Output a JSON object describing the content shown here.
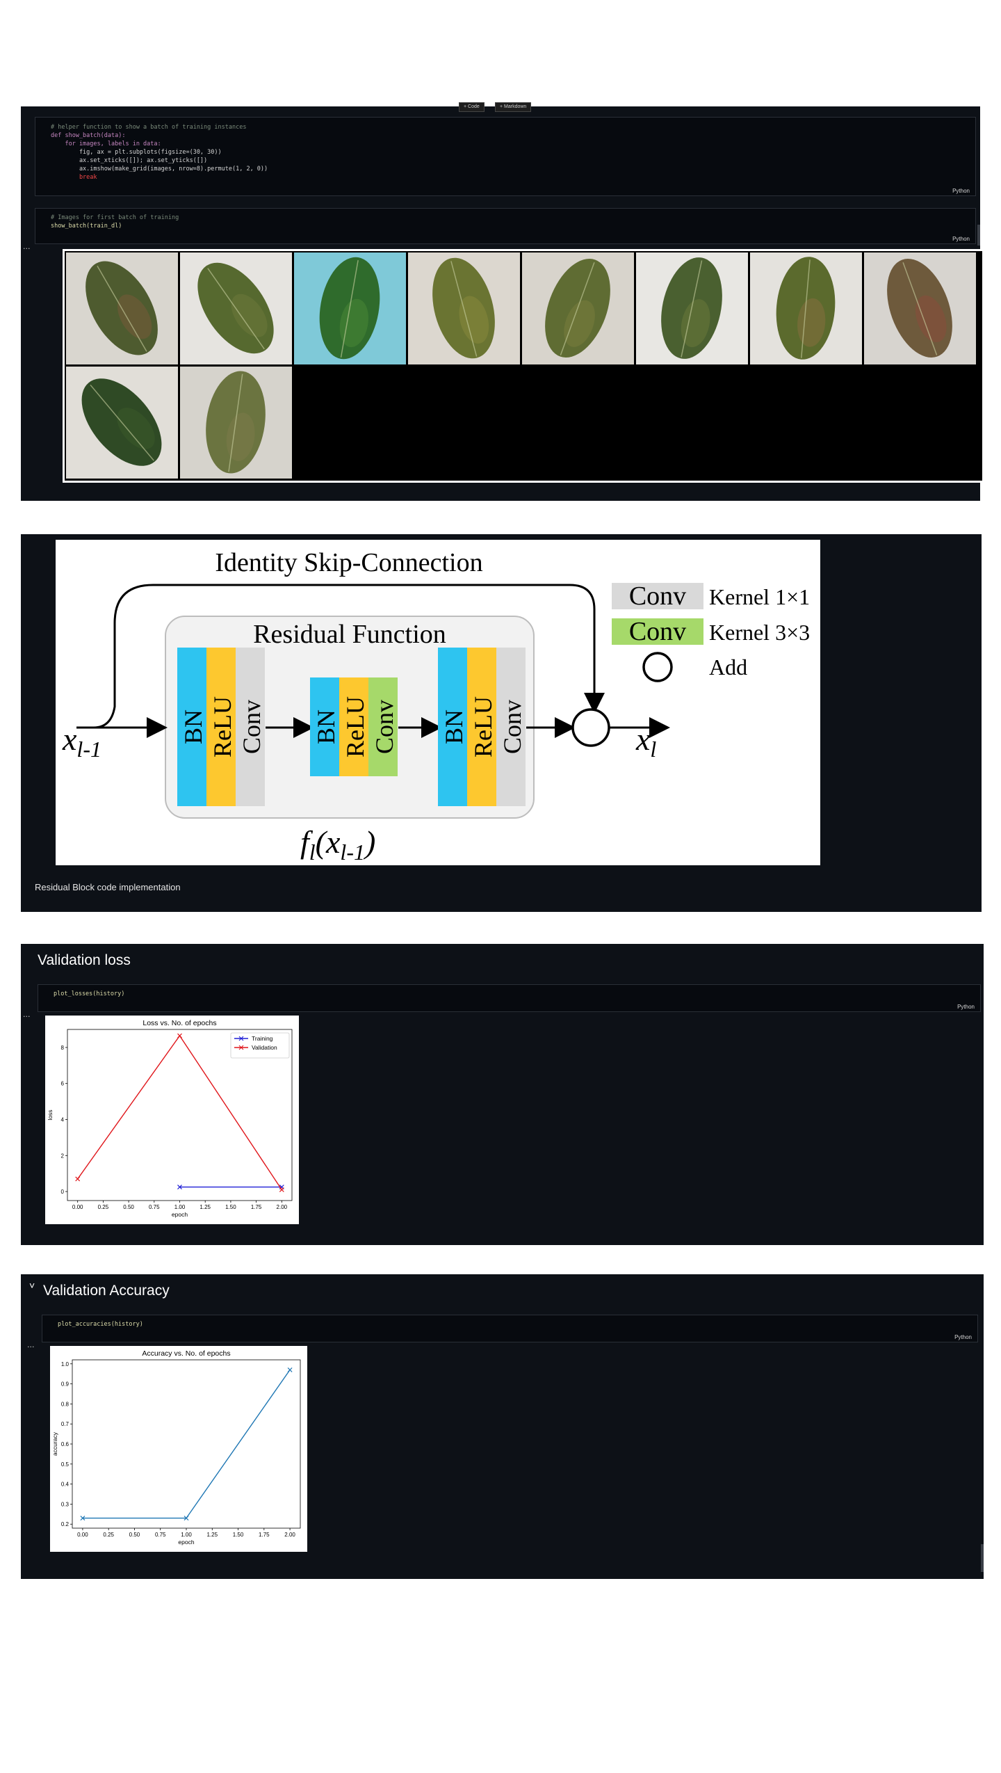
{
  "toolbar": {
    "code_label": "+ Code",
    "markdown_label": "+ Markdown"
  },
  "cells": {
    "show_batch_def": {
      "language": "Python",
      "lines": [
        "# helper function to show a batch of training instances",
        "def show_batch(data):",
        "    for images, labels in data:",
        "        fig, ax = plt.subplots(figsize=(30, 30))",
        "        ax.set_xticks([]); ax.set_yticks([])",
        "        ax.imshow(make_grid(images, nrow=8).permute(1, 2, 0))",
        "        break"
      ]
    },
    "show_batch_call": {
      "language": "Python",
      "lines": [
        "# Images for first batch of training",
        "show_batch(train_dl)"
      ]
    },
    "plot_losses": {
      "language": "Python",
      "code": "plot_losses(history)"
    },
    "plot_accuracies": {
      "language": "Python",
      "code": "plot_accuracies(history)"
    }
  },
  "output_ellipsis": "...",
  "leaf_images": [
    {
      "name": "leaf-1",
      "bg": "#d9d6cf",
      "leaf": "#4e5b2f",
      "tint": "#7a5a3a"
    },
    {
      "name": "leaf-2",
      "bg": "#e6e4e0",
      "leaf": "#56692f",
      "tint": "#6d7a3b"
    },
    {
      "name": "leaf-3",
      "bg": "#7fc9d8",
      "leaf": "#2f6b2c",
      "tint": "#4c8a35"
    },
    {
      "name": "leaf-4",
      "bg": "#dcd7cf",
      "leaf": "#6a7432",
      "tint": "#8a8a3c"
    },
    {
      "name": "leaf-5",
      "bg": "#d8d4cc",
      "leaf": "#5f6c33",
      "tint": "#7b7d3d"
    },
    {
      "name": "leaf-6",
      "bg": "#e8e7e3",
      "leaf": "#4a6030",
      "tint": "#6b7a3a"
    },
    {
      "name": "leaf-7",
      "bg": "#e4e2dd",
      "leaf": "#5b6a2d",
      "tint": "#8a6d3f"
    },
    {
      "name": "leaf-8",
      "bg": "#d7d4cf",
      "leaf": "#6e5a3c",
      "tint": "#8b4a3a"
    },
    {
      "name": "leaf-9",
      "bg": "#e1ded8",
      "leaf": "#2f4a25",
      "tint": "#3b5a2a"
    },
    {
      "name": "leaf-10",
      "bg": "#d6d3cc",
      "leaf": "#6b7440",
      "tint": "#7d7a4a"
    }
  ],
  "diagram": {
    "title": "Identity Skip-Connection",
    "residual_label": "Residual Function",
    "blocks": [
      "BN",
      "ReLU",
      "Conv"
    ],
    "input_label": "x",
    "input_sub": "l-1",
    "output_label": "x",
    "output_sub": "l",
    "function_label": "f",
    "function_sub": "l",
    "function_arg": "(x",
    "function_arg_sub": "l-1",
    "function_close": ")",
    "legend": [
      {
        "box": "Conv",
        "text": "Kernel 1×1",
        "color": "#d9d9d9"
      },
      {
        "box": "Conv",
        "text": "Kernel 3×3",
        "color": "#a6d96a"
      },
      {
        "box": "",
        "text": "Add",
        "color": "#ffffff"
      }
    ],
    "colors": {
      "bn": "#2ec4f0",
      "relu": "#fdc82f",
      "conv": "#d9d9d9",
      "conv3": "#a6d96a",
      "residual_bg": "#f2f2f2"
    },
    "caption": "Residual Block code implementation"
  },
  "headings": {
    "loss": "Validation loss",
    "accuracy": "Validation Accuracy",
    "collapse_glyph": "˅"
  },
  "chart_data": [
    {
      "type": "line",
      "title": "Loss vs. No. of epochs",
      "xlabel": "epoch",
      "ylabel": "loss",
      "xlim": [
        -0.1,
        2.1
      ],
      "ylim": [
        -0.5,
        9.0
      ],
      "xticks": [
        "0.00",
        "0.25",
        "0.50",
        "0.75",
        "1.00",
        "1.25",
        "1.50",
        "1.75",
        "2.00"
      ],
      "yticks": [
        "0",
        "2",
        "4",
        "6",
        "8"
      ],
      "legend_position": "top-right",
      "series": [
        {
          "name": "Training",
          "color": "#1f1fd6",
          "marker": "x",
          "x": [
            1,
            2
          ],
          "y": [
            0.25,
            0.25
          ]
        },
        {
          "name": "Validation",
          "color": "#e0161b",
          "marker": "x",
          "x": [
            0,
            1,
            2
          ],
          "y": [
            0.7,
            8.65,
            0.1
          ]
        }
      ]
    },
    {
      "type": "line",
      "title": "Accuracy vs. No. of epochs",
      "xlabel": "epoch",
      "ylabel": "accuracy",
      "xlim": [
        -0.1,
        2.1
      ],
      "ylim": [
        0.18,
        1.02
      ],
      "xticks": [
        "0.00",
        "0.25",
        "0.50",
        "0.75",
        "1.00",
        "1.25",
        "1.50",
        "1.75",
        "2.00"
      ],
      "yticks": [
        "0.2",
        "0.3",
        "0.4",
        "0.5",
        "0.6",
        "0.7",
        "0.8",
        "0.9",
        "1.0"
      ],
      "series": [
        {
          "color": "#1f77b4",
          "marker": "x",
          "x": [
            0,
            1,
            2
          ],
          "y": [
            0.23,
            0.23,
            0.97
          ]
        }
      ]
    }
  ]
}
